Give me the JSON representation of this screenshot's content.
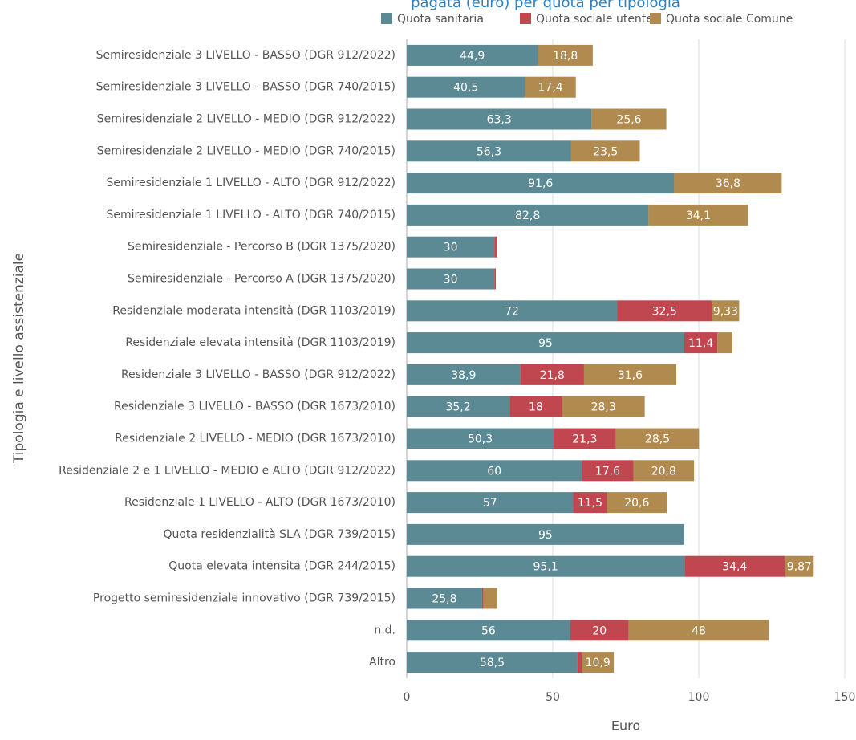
{
  "chart_data": {
    "type": "stacked-bar-horizontal",
    "title": "pagata (euro) per quota per tipologia",
    "xlabel": "Euro",
    "ylabel": "Tipologia e livello assistenziale",
    "categories": [
      "Semiresidenziale 3 LIVELLO - BASSO (DGR 912/2022)",
      "Semiresidenziale 3 LIVELLO - BASSO (DGR 740/2015)",
      "Semiresidenziale 2 LIVELLO - MEDIO (DGR 912/2022)",
      "Semiresidenziale 2 LIVELLO - MEDIO (DGR 740/2015)",
      "Semiresidenziale 1 LIVELLO - ALTO (DGR 912/2022)",
      "Semiresidenziale 1 LIVELLO - ALTO (DGR 740/2015)",
      "Semiresidenziale - Percorso B (DGR 1375/2020)",
      "Semiresidenziale - Percorso A (DGR 1375/2020)",
      "Residenziale moderata intensità (DGR 1103/2019)",
      "Residenziale elevata intensità (DGR 1103/2019)",
      "Residenziale 3 LIVELLO - BASSO (DGR 912/2022)",
      "Residenziale 3 LIVELLO - BASSO (DGR 1673/2010)",
      "Residenziale 2 LIVELLO - MEDIO (DGR 1673/2010)",
      "Residenziale 2 e 1 LIVELLO - MEDIO e ALTO (DGR 912/2022)",
      "Residenziale 1 LIVELLO - ALTO (DGR 1673/2010)",
      "Quota residenzialità SLA (DGR 739/2015)",
      "Quota elevata intensita (DGR 244/2015)",
      "Progetto semiresidenziale innovativo (DGR 739/2015)",
      "n.d.",
      "Altro"
    ],
    "series": [
      {
        "name": "Quota sanitaria",
        "color": "#5b8a94",
        "values": [
          44.9,
          40.5,
          63.3,
          56.3,
          91.6,
          82.8,
          30,
          30,
          72,
          95,
          38.9,
          35.2,
          50.3,
          60,
          57,
          95,
          95.1,
          25.8,
          56,
          58.5
        ],
        "value_labels": [
          "44,9",
          "40,5",
          "63,3",
          "56,3",
          "91,6",
          "82,8",
          "30",
          "30",
          "72",
          "95",
          "38,9",
          "35,2",
          "50,3",
          "60",
          "57",
          "95",
          "95,1",
          "25,8",
          "56",
          "58,5"
        ]
      },
      {
        "name": "Quota sociale utente",
        "color": "#c0474f",
        "values": [
          null,
          null,
          null,
          null,
          null,
          null,
          1,
          0.5,
          32.5,
          11.4,
          21.8,
          18,
          21.3,
          17.6,
          11.5,
          null,
          34.4,
          0.5,
          20,
          1.5
        ],
        "value_labels": [
          null,
          null,
          null,
          null,
          null,
          null,
          null,
          null,
          "32,5",
          "11,4",
          "21,8",
          "18",
          "21,3",
          "17,6",
          "11,5",
          null,
          "34,4",
          null,
          "20",
          null
        ]
      },
      {
        "name": "Quota sociale Comune",
        "color": "#b08a4f",
        "values": [
          18.8,
          17.4,
          25.6,
          23.5,
          36.8,
          34.1,
          null,
          null,
          9.33,
          5.1,
          31.6,
          28.3,
          28.5,
          20.8,
          20.6,
          null,
          9.87,
          4.7,
          48,
          10.9
        ],
        "value_labels": [
          "18,8",
          "17,4",
          "25,6",
          "23,5",
          "36,8",
          "34,1",
          null,
          null,
          "9,33",
          null,
          "31,6",
          "28,3",
          "28,5",
          "20,8",
          "20,6",
          null,
          "9,87",
          null,
          "48",
          "10,9"
        ]
      }
    ],
    "xlim": [
      0,
      150
    ],
    "xticks": [
      0,
      50,
      100,
      150
    ],
    "grid": true,
    "legend": "top-right"
  }
}
